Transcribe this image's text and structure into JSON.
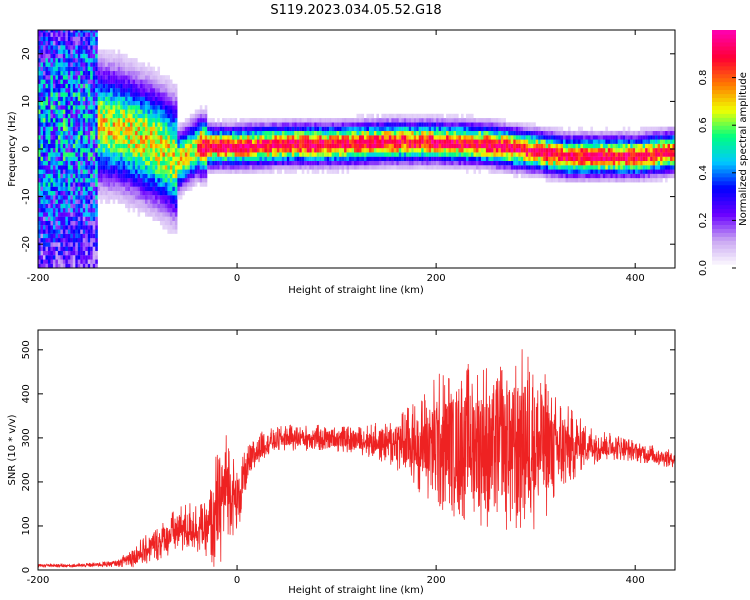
{
  "title": "S119.2023.034.05.52.G18",
  "chart_data": [
    {
      "type": "heatmap",
      "xlabel": "Height of straight line (km)",
      "ylabel": "Frequency (Hz)",
      "xlim": [
        -200,
        440
      ],
      "ylim": [
        -25,
        25
      ],
      "xticks": [
        -200,
        0,
        200,
        400
      ],
      "yticks": [
        -20,
        -10,
        0,
        10,
        20
      ],
      "colorbar": {
        "label": "Normalized spectral amplitude",
        "range": [
          0,
          1
        ],
        "ticks": [
          0.0,
          0.2,
          0.4,
          0.6,
          0.8
        ],
        "colormap": [
          "#ffffff",
          "#c9a6f2",
          "#6a00ff",
          "#0000ff",
          "#00c8ff",
          "#00ff80",
          "#f0ff00",
          "#ff7a00",
          "#ff0033",
          "#ff00aa"
        ]
      },
      "ridge": {
        "x": [
          -200,
          -150,
          -120,
          -100,
          -80,
          -60,
          -40,
          -20,
          0,
          50,
          100,
          150,
          200,
          250,
          300,
          330,
          360,
          400,
          440
        ],
        "freq": [
          2,
          5,
          4,
          2,
          0,
          -3,
          0,
          0,
          0,
          0.5,
          0.5,
          1,
          1,
          0.5,
          -1,
          -2,
          -2,
          -2,
          -1
        ]
      }
    },
    {
      "type": "line",
      "xlabel": "Height of straight line (km)",
      "ylabel": "SNR (10 * v/v)",
      "xlim": [
        -200,
        440
      ],
      "ylim": [
        0,
        545
      ],
      "xticks": [
        -200,
        0,
        200,
        400
      ],
      "yticks": [
        0,
        100,
        200,
        300,
        400,
        500
      ],
      "series": [
        {
          "color": "#ee2222",
          "x": [
            -200,
            -160,
            -140,
            -120,
            -100,
            -80,
            -60,
            -45,
            -30,
            -20,
            -10,
            0,
            10,
            20,
            30,
            50,
            80,
            120,
            150,
            180,
            200,
            230,
            260,
            290,
            310,
            330,
            350,
            380,
            400,
            440
          ],
          "values": [
            10,
            10,
            12,
            15,
            35,
            60,
            90,
            100,
            90,
            130,
            200,
            150,
            230,
            270,
            290,
            300,
            300,
            295,
            290,
            285,
            290,
            290,
            285,
            290,
            280,
            280,
            285,
            280,
            270,
            250
          ],
          "spread": [
            4,
            4,
            6,
            8,
            30,
            40,
            55,
            60,
            60,
            150,
            120,
            80,
            50,
            40,
            30,
            30,
            30,
            30,
            50,
            100,
            160,
            180,
            200,
            220,
            170,
            100,
            50,
            30,
            25,
            20
          ]
        }
      ]
    }
  ]
}
